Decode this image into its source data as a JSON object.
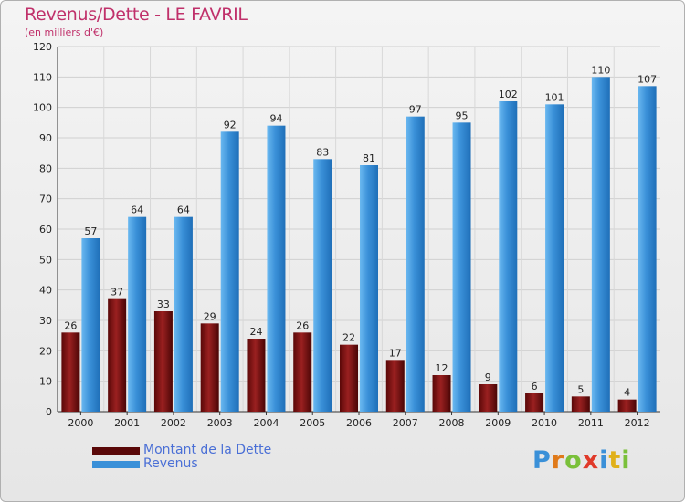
{
  "chart_data": {
    "type": "bar",
    "title": "Revenus/Dette - LE FAVRIL",
    "subtitle": "(en milliers d'€)",
    "categories": [
      "2000",
      "2001",
      "2002",
      "2003",
      "2004",
      "2005",
      "2006",
      "2007",
      "2008",
      "2009",
      "2010",
      "2011",
      "2012"
    ],
    "series": [
      {
        "name": "Montant de la Dette",
        "color": "#7a1010",
        "values": [
          26,
          37,
          33,
          29,
          24,
          26,
          22,
          17,
          12,
          9,
          6,
          5,
          4
        ]
      },
      {
        "name": "Revenus",
        "color": "#3a90d8",
        "values": [
          57,
          64,
          64,
          92,
          94,
          83,
          81,
          97,
          95,
          102,
          101,
          110,
          107
        ]
      }
    ],
    "ylim": [
      0,
      120
    ],
    "yticks": [
      0,
      10,
      20,
      30,
      40,
      50,
      60,
      70,
      80,
      90,
      100,
      110,
      120
    ],
    "grid": true,
    "legend_position": "bottom-left"
  },
  "logo": {
    "text": "Proxiti",
    "colors": [
      "#3a90d8",
      "#e07a1a",
      "#7ac03a",
      "#e03a2a",
      "#3a90d8",
      "#e0b01a",
      "#7ac03a"
    ]
  }
}
